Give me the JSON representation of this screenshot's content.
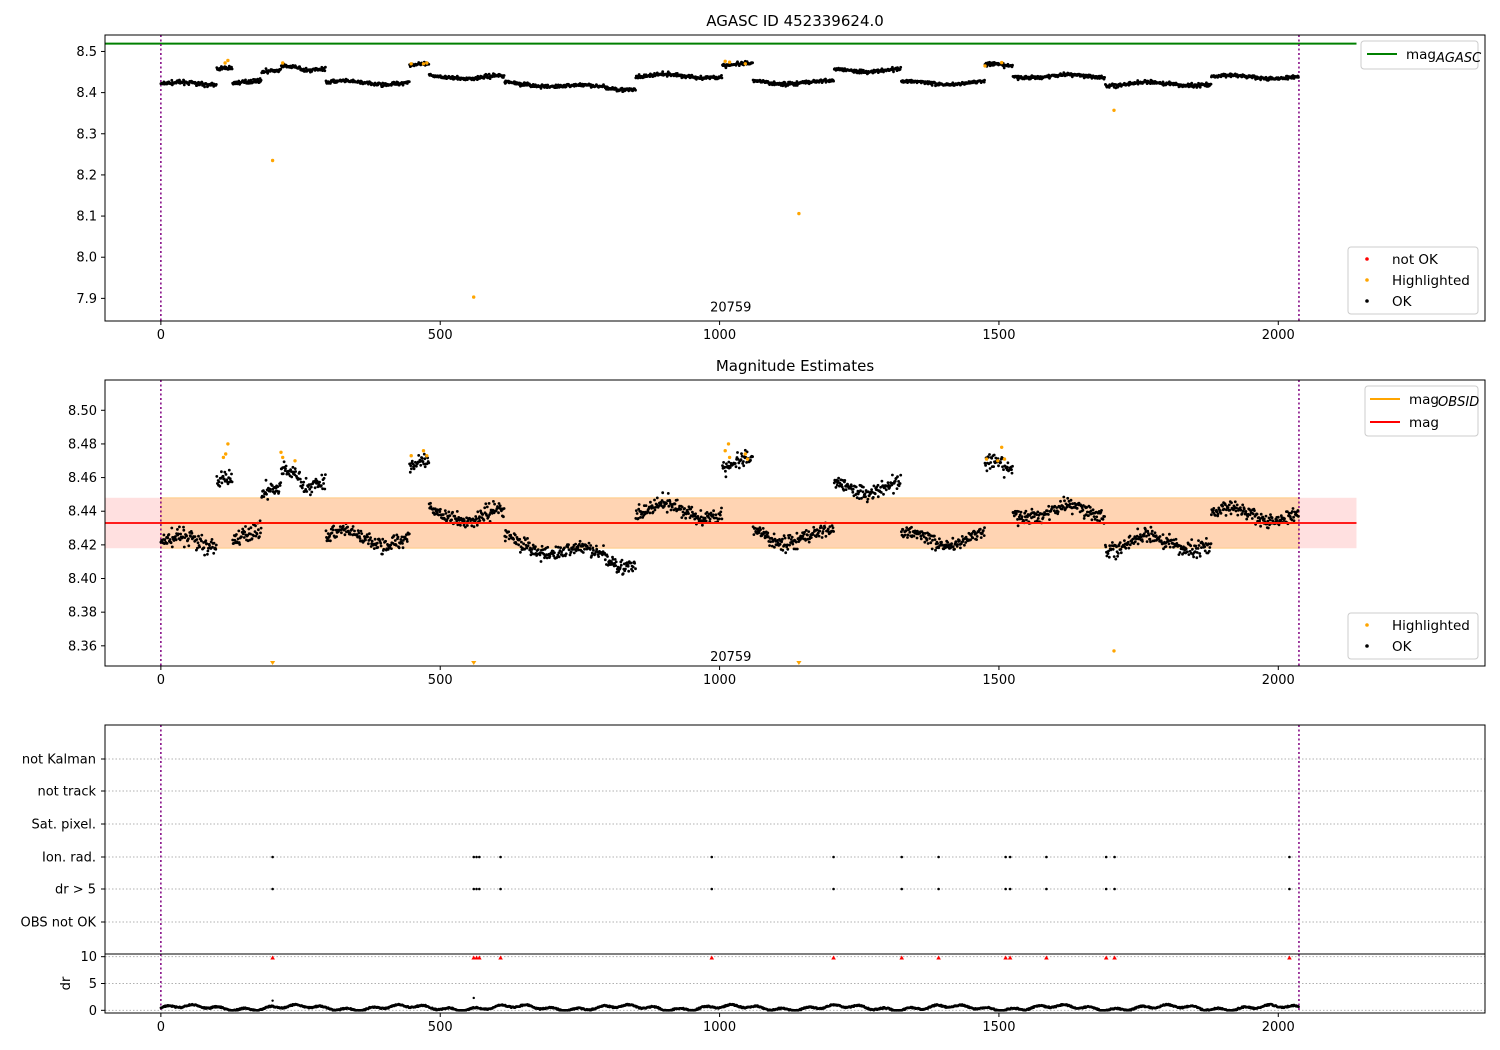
{
  "chart_data": [
    {
      "type": "scatter",
      "title": "AGASC ID 452339624.0",
      "xlim": [
        -100,
        2370
      ],
      "ylim": [
        7.845,
        8.54
      ],
      "xticks": [
        0,
        500,
        1000,
        1500,
        2000
      ],
      "yticks": [
        7.9,
        8.0,
        8.1,
        8.2,
        8.3,
        8.4,
        8.5
      ],
      "ytick_decimals": 1,
      "obsid_label": {
        "text": "20759",
        "x": 1020,
        "y": 7.88
      },
      "vlines": [
        0,
        2037
      ],
      "hline": {
        "name": "mag_AGASC",
        "value": 8.519,
        "color": "#008000",
        "x": [
          -100,
          2140
        ]
      },
      "legends": {
        "lines": [
          {
            "label": "mag",
            "sub": "AGASC",
            "color": "#008000"
          }
        ],
        "points": [
          {
            "label": "not OK",
            "color": "#ff0000"
          },
          {
            "label": "Highlighted",
            "color": "#ffa500"
          },
          {
            "label": "OK",
            "color": "#000000"
          }
        ]
      },
      "highlighted_points": [
        [
          115,
          8.472
        ],
        [
          120,
          8.478
        ],
        [
          200,
          8.235
        ],
        [
          218,
          8.472
        ],
        [
          448,
          8.47
        ],
        [
          470,
          8.47
        ],
        [
          476,
          8.472
        ],
        [
          560,
          7.903
        ],
        [
          1010,
          8.476
        ],
        [
          1018,
          8.474
        ],
        [
          1046,
          8.47
        ],
        [
          1142,
          8.106
        ],
        [
          1475,
          8.465
        ],
        [
          1505,
          8.473
        ],
        [
          1706,
          8.357
        ]
      ]
    },
    {
      "type": "scatter",
      "title": "Magnitude Estimates",
      "xlim": [
        -100,
        2370
      ],
      "ylim": [
        8.348,
        8.518
      ],
      "xticks": [
        0,
        500,
        1000,
        1500,
        2000
      ],
      "yticks": [
        8.36,
        8.38,
        8.4,
        8.42,
        8.44,
        8.46,
        8.48,
        8.5
      ],
      "ytick_decimals": 2,
      "obsid_label": {
        "text": "20759",
        "x": 1020,
        "y": 8.354
      },
      "vlines": [
        0,
        2037
      ],
      "mag_line": {
        "value": 8.433,
        "color": "#ff0000",
        "x": [
          -100,
          2140
        ]
      },
      "mag_band": [
        8.418,
        8.448
      ],
      "obsid_line": {
        "value": 8.433,
        "color": "#ffa500",
        "x": [
          0,
          2037
        ]
      },
      "legends": {
        "lines": [
          {
            "label": "mag",
            "sub": "OBSID",
            "color": "#ffa500"
          },
          {
            "label": "mag",
            "sub": "",
            "color": "#ff0000"
          }
        ],
        "points": [
          {
            "label": "Highlighted",
            "color": "#ffa500"
          },
          {
            "label": "OK",
            "color": "#000000"
          }
        ]
      },
      "highlighted_points": [
        [
          112,
          8.472
        ],
        [
          116,
          8.474
        ],
        [
          120,
          8.48
        ],
        [
          215,
          8.475
        ],
        [
          218,
          8.472
        ],
        [
          240,
          8.47
        ],
        [
          448,
          8.473
        ],
        [
          470,
          8.476
        ],
        [
          476,
          8.473
        ],
        [
          1010,
          8.476
        ],
        [
          1016,
          8.48
        ],
        [
          1018,
          8.472
        ],
        [
          1046,
          8.474
        ],
        [
          1050,
          8.471
        ],
        [
          1478,
          8.471
        ],
        [
          1498,
          8.47
        ],
        [
          1505,
          8.478
        ],
        [
          1510,
          8.471
        ],
        [
          1706,
          8.357
        ]
      ],
      "offscale_markers": [
        200,
        560,
        1142
      ]
    },
    {
      "type": "scatter",
      "title": "",
      "xlim": [
        -100,
        2370
      ],
      "row_labels": [
        "not Kalman",
        "not track",
        "Sat. pixel.",
        "Ion. rad.",
        "dr > 5",
        "OBS not OK"
      ],
      "flag_x": [
        200,
        560,
        565,
        570,
        608,
        986,
        1204,
        1326,
        1392,
        1512,
        1520,
        1585,
        1692,
        1707,
        2020
      ]
    },
    {
      "type": "scatter",
      "title": "",
      "xlim": [
        -100,
        2370
      ],
      "ylim": [
        -0.5,
        10.5
      ],
      "ylabel": "dr",
      "xticks": [
        0,
        500,
        1000,
        1500,
        2000
      ],
      "yticks": [
        0,
        5,
        10
      ],
      "ytick_decimals": 0,
      "markers_at_10": [
        200,
        560,
        565,
        570,
        608,
        986,
        1204,
        1326,
        1392,
        1512,
        1520,
        1585,
        1692,
        1707,
        2020
      ]
    }
  ]
}
